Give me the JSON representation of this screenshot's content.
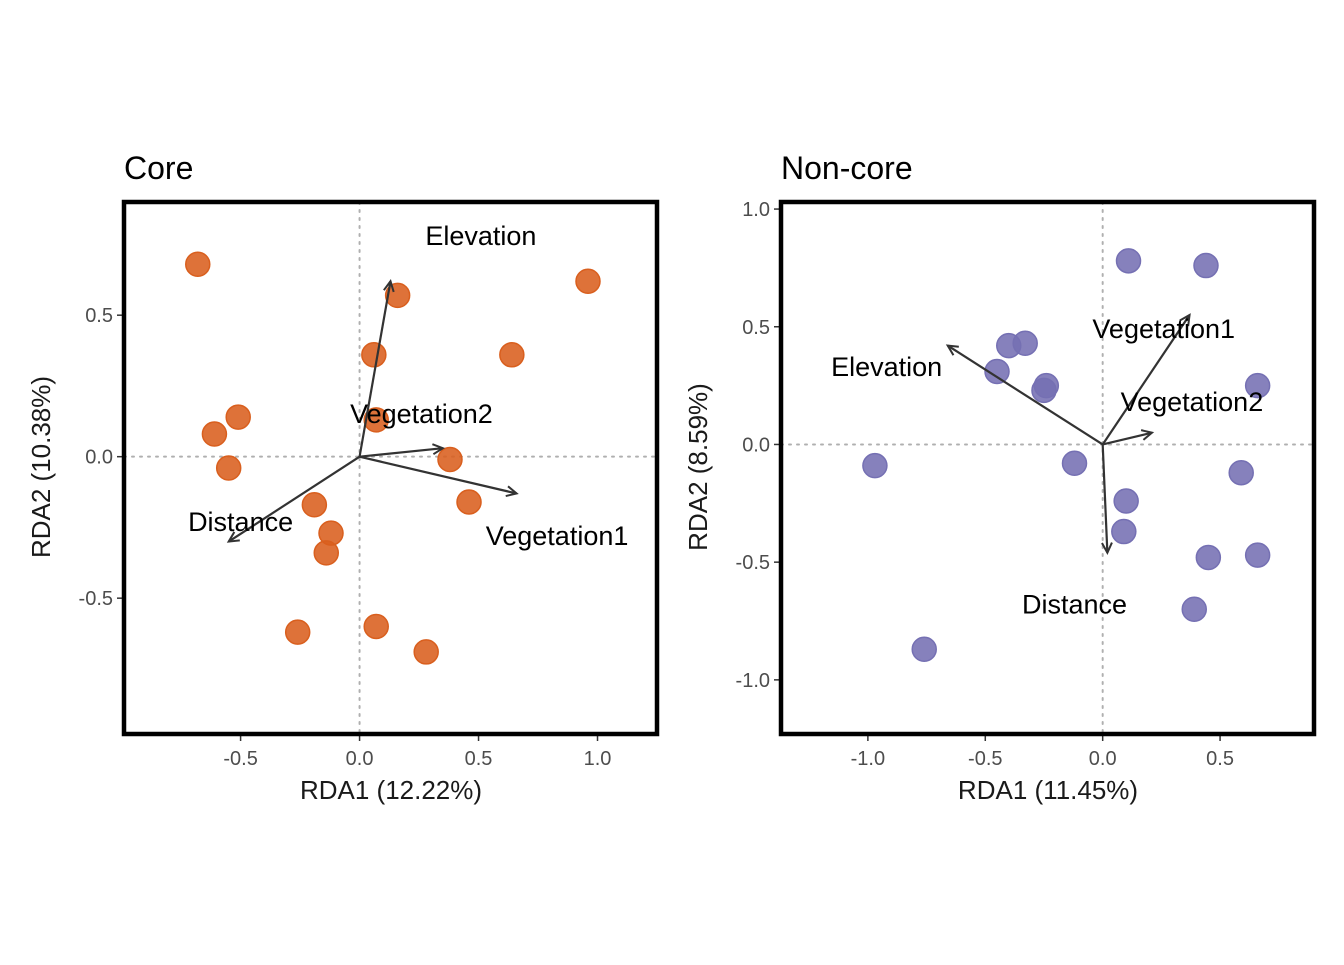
{
  "chart_data": [
    {
      "type": "scatter",
      "title": "Core",
      "xlabel": "RDA1 (12.22%)",
      "ylabel": "RDA2 (10.38%)",
      "xlim": [
        -0.99,
        1.25
      ],
      "ylim": [
        -0.98,
        0.9
      ],
      "xticks": [
        -0.5,
        0.0,
        0.5,
        1.0
      ],
      "xtick_labels": [
        "-0.5",
        "0.0",
        "0.5",
        "1.0"
      ],
      "yticks": [
        -0.5,
        0.0,
        0.5
      ],
      "ytick_labels": [
        "-0.5",
        "0.0",
        "0.5"
      ],
      "point_color": "#D95F1E",
      "reference_lines": "dotted lines at x = 0 and y = 0",
      "grid": false,
      "points": [
        {
          "x": -0.68,
          "y": 0.68
        },
        {
          "x": 0.96,
          "y": 0.62
        },
        {
          "x": 0.16,
          "y": 0.57
        },
        {
          "x": 0.06,
          "y": 0.36
        },
        {
          "x": 0.64,
          "y": 0.36
        },
        {
          "x": -0.51,
          "y": 0.14
        },
        {
          "x": 0.07,
          "y": 0.13
        },
        {
          "x": -0.61,
          "y": 0.08
        },
        {
          "x": -0.55,
          "y": -0.04
        },
        {
          "x": 0.38,
          "y": -0.01
        },
        {
          "x": 0.46,
          "y": -0.16
        },
        {
          "x": -0.19,
          "y": -0.17
        },
        {
          "x": -0.12,
          "y": -0.27
        },
        {
          "x": -0.14,
          "y": -0.34
        },
        {
          "x": -0.26,
          "y": -0.62
        },
        {
          "x": 0.07,
          "y": -0.6
        },
        {
          "x": 0.28,
          "y": -0.69
        }
      ],
      "arrows": [
        {
          "name": "Elevation",
          "label": "Elevation",
          "x": 0.13,
          "y": 0.62,
          "label_x": 0.51,
          "label_y": 0.78
        },
        {
          "name": "Vegetation2",
          "label": "Vegetation2",
          "x": 0.35,
          "y": 0.03,
          "label_x": 0.26,
          "label_y": 0.15
        },
        {
          "name": "Vegetation1",
          "label": "Vegetation1",
          "x": 0.66,
          "y": -0.13,
          "label_x": 0.83,
          "label_y": -0.28
        },
        {
          "name": "Distance",
          "label": "Distance",
          "x": -0.55,
          "y": -0.3,
          "label_x": -0.5,
          "label_y": -0.23
        }
      ]
    },
    {
      "type": "scatter",
      "title": "Non-core",
      "xlabel": "RDA1 (11.45%)",
      "ylabel": "RDA2 (8.59%)",
      "xlim": [
        -1.37,
        0.9
      ],
      "ylim": [
        -1.23,
        1.03
      ],
      "xticks": [
        -1.0,
        -0.5,
        0.0,
        0.5
      ],
      "xtick_labels": [
        "-1.0",
        "-0.5",
        "0.0",
        "0.5"
      ],
      "yticks": [
        -1.0,
        -0.5,
        0.0,
        0.5,
        1.0
      ],
      "ytick_labels": [
        "-1.0",
        "-0.5",
        "0.0",
        "0.5",
        "1.0"
      ],
      "point_color": "#7570B3",
      "reference_lines": "dotted line at x = 0 and y = 0",
      "grid": false,
      "points": [
        {
          "x": 0.11,
          "y": 0.78
        },
        {
          "x": 0.44,
          "y": 0.76
        },
        {
          "x": -0.4,
          "y": 0.42
        },
        {
          "x": -0.33,
          "y": 0.43
        },
        {
          "x": -0.45,
          "y": 0.31
        },
        {
          "x": -0.24,
          "y": 0.25
        },
        {
          "x": -0.25,
          "y": 0.23
        },
        {
          "x": 0.66,
          "y": 0.25
        },
        {
          "x": -0.97,
          "y": -0.09
        },
        {
          "x": -0.12,
          "y": -0.08
        },
        {
          "x": 0.59,
          "y": -0.12
        },
        {
          "x": 0.1,
          "y": -0.24
        },
        {
          "x": 0.09,
          "y": -0.37
        },
        {
          "x": 0.45,
          "y": -0.48
        },
        {
          "x": 0.66,
          "y": -0.47
        },
        {
          "x": 0.39,
          "y": -0.7
        },
        {
          "x": -0.76,
          "y": -0.87
        }
      ],
      "arrows": [
        {
          "name": "Elevation",
          "label": "Elevation",
          "x": -0.66,
          "y": 0.42,
          "label_x": -0.92,
          "label_y": 0.33
        },
        {
          "name": "Vegetation1",
          "label": "Vegetation1",
          "x": 0.37,
          "y": 0.55,
          "label_x": 0.26,
          "label_y": 0.49
        },
        {
          "name": "Vegetation2",
          "label": "Vegetation2",
          "x": 0.21,
          "y": 0.05,
          "label_x": 0.38,
          "label_y": 0.18
        },
        {
          "name": "Distance",
          "label": "Distance",
          "x": 0.02,
          "y": -0.46,
          "label_x": -0.12,
          "label_y": -0.68
        }
      ]
    }
  ]
}
